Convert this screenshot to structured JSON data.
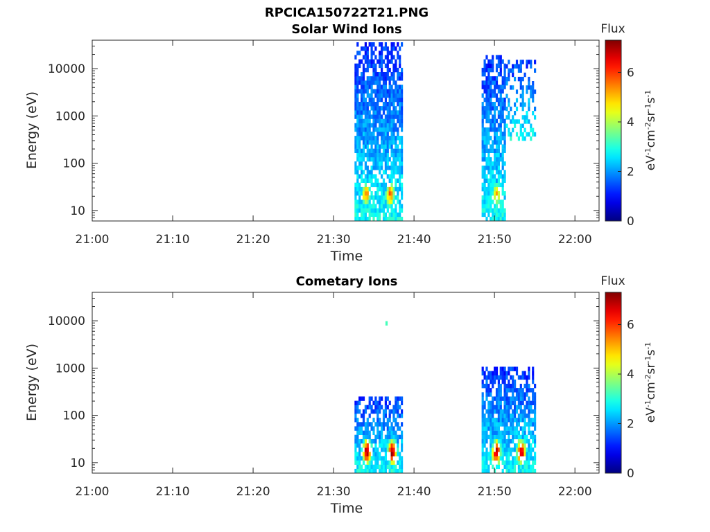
{
  "figure_title": "RPCICA150722T21.PNG",
  "chart_data": [
    {
      "type": "heatmap",
      "title": "Solar Wind Ions",
      "xlabel": "Time",
      "ylabel": "Energy (eV)",
      "xlim": [
        "21:00",
        "22:03"
      ],
      "ylim": [
        6,
        40000
      ],
      "y_scale": "log",
      "x_ticks": [
        "21:00",
        "21:10",
        "21:20",
        "21:30",
        "21:40",
        "21:50",
        "22:00"
      ],
      "y_ticks": [
        "10",
        "100",
        "1000",
        "10000"
      ],
      "colorbar": {
        "title": "Flux",
        "label": "eV-1cm-2sr-1s-1",
        "range": [
          0,
          7.3
        ],
        "ticks": [
          "0",
          "2",
          "4",
          "6"
        ],
        "colormap": "jet"
      },
      "regions": [
        {
          "t_start": "21:32.6",
          "t_end": "21:38.6",
          "e_low": 6,
          "e_high": 30000,
          "peaks": [
            {
              "t": "21:33.9",
              "e": 20,
              "flux": 5.5
            },
            {
              "t": "21:36.9",
              "e": 20,
              "flux": 5.5
            }
          ]
        },
        {
          "t_start": "21:48.4",
          "t_end": "21:51.4",
          "e_low": 6,
          "e_high": 18000,
          "peaks": [
            {
              "t": "21:50.1",
              "e": 20,
              "flux": 5.0
            }
          ]
        },
        {
          "t_start": "21:51.4",
          "t_end": "21:55.0",
          "e_low": 300,
          "e_high": 15000,
          "peaks": []
        }
      ]
    },
    {
      "type": "heatmap",
      "title": "Cometary Ions",
      "xlabel": "Time",
      "ylabel": "Energy (eV)",
      "xlim": [
        "21:00",
        "22:03"
      ],
      "ylim": [
        6,
        40000
      ],
      "y_scale": "log",
      "x_ticks": [
        "21:00",
        "21:10",
        "21:20",
        "21:30",
        "21:40",
        "21:50",
        "22:00"
      ],
      "y_ticks": [
        "10",
        "100",
        "1000",
        "10000"
      ],
      "colorbar": {
        "title": "Flux",
        "label": "eV-1cm-2sr-1s-1",
        "range": [
          0,
          7.3
        ],
        "ticks": [
          "0",
          "2",
          "4",
          "6"
        ],
        "colormap": "jet"
      },
      "regions": [
        {
          "t_start": "21:32.6",
          "t_end": "21:38.6",
          "e_low": 6,
          "e_high": 250,
          "peaks": [
            {
              "t": "21:34.0",
              "e": 15,
              "flux": 7.0
            },
            {
              "t": "21:37.2",
              "e": 15,
              "flux": 7.0
            }
          ]
        },
        {
          "t_start": "21:48.4",
          "t_end": "21:55.0",
          "e_low": 6,
          "e_high": 1000,
          "peaks": [
            {
              "t": "21:50.1",
              "e": 15,
              "flux": 6.8
            },
            {
              "t": "21:53.2",
              "e": 15,
              "flux": 7.0
            }
          ]
        },
        {
          "t_start": "21:36.2",
          "t_end": "21:36.6",
          "e_low": 8000,
          "e_high": 9000,
          "peaks": []
        }
      ]
    }
  ]
}
